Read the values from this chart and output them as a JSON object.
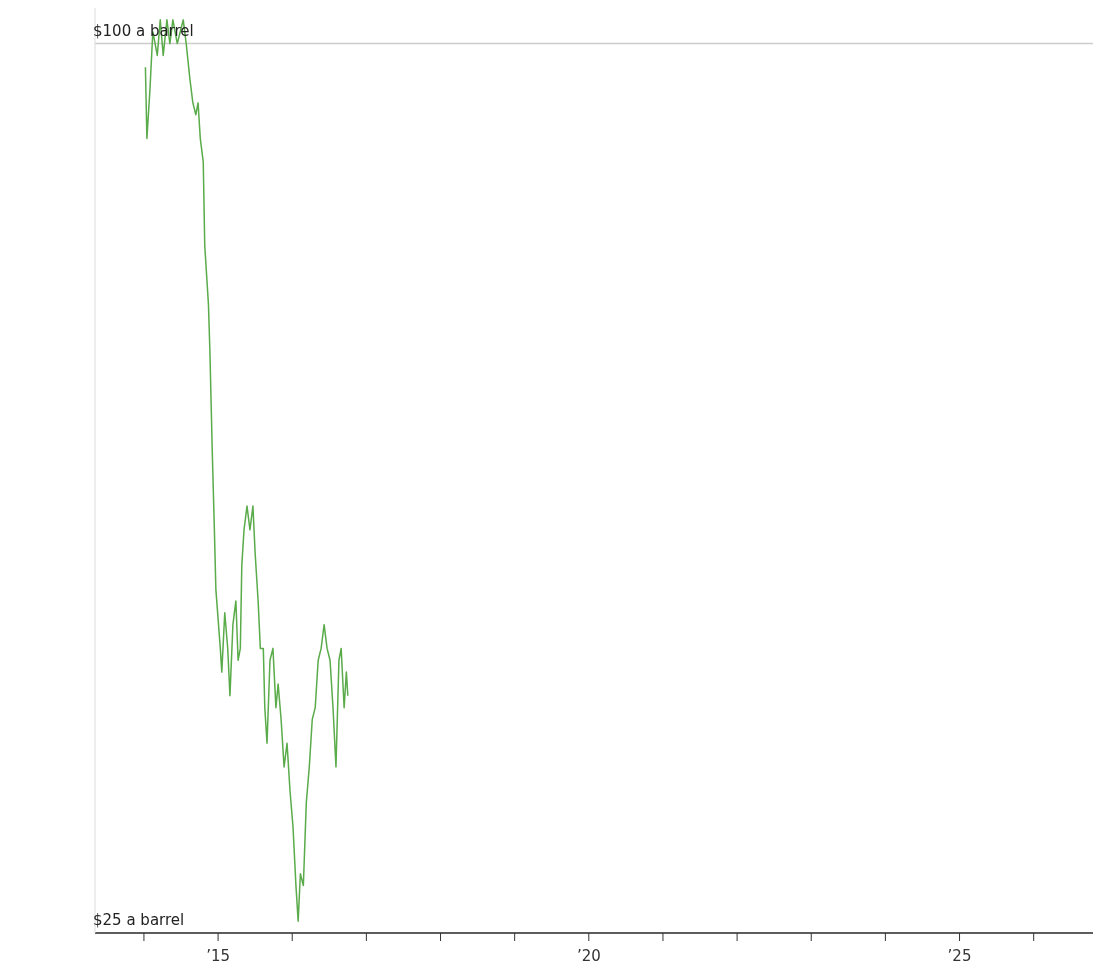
{
  "chart_data": {
    "type": "line",
    "x": [
      2014.02,
      2014.04,
      2014.08,
      2014.12,
      2014.18,
      2014.22,
      2014.26,
      2014.31,
      2014.35,
      2014.39,
      2014.45,
      2014.49,
      2014.53,
      2014.57,
      2014.62,
      2014.66,
      2014.7,
      2014.73,
      2014.76,
      2014.8,
      2014.82,
      2014.87,
      2014.89,
      2014.92,
      2014.95,
      2014.97,
      2015.03,
      2015.05,
      2015.09,
      2015.13,
      2015.16,
      2015.2,
      2015.24,
      2015.27,
      2015.3,
      2015.32,
      2015.35,
      2015.39,
      2015.43,
      2015.47,
      2015.5,
      2015.54,
      2015.57,
      2015.61,
      2015.63,
      2015.66,
      2015.7,
      2015.74,
      2015.78,
      2015.81,
      2015.85,
      2015.89,
      2015.93,
      2015.97,
      2016.01,
      2016.05,
      2016.08,
      2016.11,
      2016.15,
      2016.19,
      2016.23,
      2016.27,
      2016.31,
      2016.35,
      2016.39,
      2016.43,
      2016.47,
      2016.51,
      2016.55,
      2016.59,
      2016.63,
      2016.66,
      2016.7,
      2016.73,
      2016.75
    ],
    "series": [
      {
        "color": "#5aab4a",
        "values": [
          98,
          92,
          96,
          101,
          99,
          102,
          99,
          102,
          100,
          102,
          100,
          101,
          102,
          100,
          97,
          95,
          94,
          95,
          92,
          90,
          83,
          78,
          74,
          66,
          59,
          54,
          49,
          47,
          52,
          49,
          45,
          51,
          53,
          48,
          49,
          56,
          59,
          61,
          59,
          61,
          57,
          53,
          49,
          49,
          44,
          41,
          48,
          49,
          44,
          46,
          43,
          39,
          41,
          37,
          34,
          29,
          26,
          30,
          29,
          36,
          39,
          43,
          44,
          48,
          49,
          51,
          49,
          48,
          44,
          39,
          48,
          49,
          44,
          47,
          45
        ]
      }
    ],
    "xlim": [
      2013.34,
      2026.8
    ],
    "xticks": [
      {
        "value": 2014,
        "label": null
      },
      {
        "value": 2015,
        "label": "’15"
      },
      {
        "value": 2016,
        "label": null
      },
      {
        "value": 2017,
        "label": null
      },
      {
        "value": 2018,
        "label": null
      },
      {
        "value": 2019,
        "label": null
      },
      {
        "value": 2020,
        "label": "’20"
      },
      {
        "value": 2021,
        "label": null
      },
      {
        "value": 2022,
        "label": null
      },
      {
        "value": 2023,
        "label": null
      },
      {
        "value": 2024,
        "label": null
      },
      {
        "value": 2025,
        "label": "’25"
      },
      {
        "value": 2026,
        "label": null
      }
    ],
    "ylim": [
      25,
      103
    ],
    "yticks": [
      {
        "value": 25,
        "label": "$25 a barrel"
      },
      {
        "value": 100,
        "label": "$100 a barrel"
      }
    ],
    "grid": "y",
    "marker": "none",
    "line_style": "solid"
  }
}
